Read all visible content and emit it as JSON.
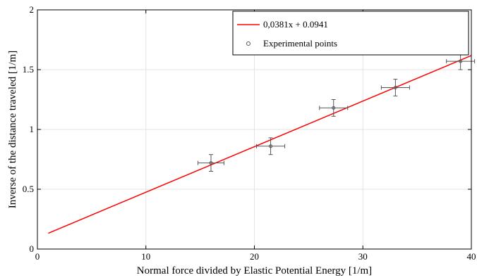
{
  "chart_data": {
    "type": "scatter",
    "title": "",
    "xlabel": "Normal force divided by Elastic Potential Energy [1/m]",
    "ylabel": "Inverse of the distance traveled [1/m]",
    "xlim": [
      0,
      40
    ],
    "ylim": [
      0,
      2
    ],
    "x_ticks": [
      "0",
      "10",
      "20",
      "30",
      "40"
    ],
    "y_ticks": [
      "0",
      "0.5",
      "1",
      "1.5",
      "2"
    ],
    "grid": true,
    "legend_position": "top-right",
    "series": [
      {
        "name": "0,0381x + 0.0941",
        "kind": "line",
        "color": "#ff0000",
        "slope": 0.0381,
        "intercept": 0.0941,
        "x_range": [
          1,
          40
        ]
      },
      {
        "name": "Experimental points",
        "kind": "points",
        "color": "#555555",
        "points": [
          {
            "x": 16.0,
            "y": 0.72,
            "x_err": 1.2,
            "y_err": 0.07
          },
          {
            "x": 21.5,
            "y": 0.86,
            "x_err": 1.3,
            "y_err": 0.07
          },
          {
            "x": 27.3,
            "y": 1.18,
            "x_err": 1.3,
            "y_err": 0.07
          },
          {
            "x": 33.0,
            "y": 1.35,
            "x_err": 1.3,
            "y_err": 0.07
          },
          {
            "x": 39.0,
            "y": 1.57,
            "x_err": 1.3,
            "y_err": 0.07
          }
        ]
      }
    ]
  }
}
